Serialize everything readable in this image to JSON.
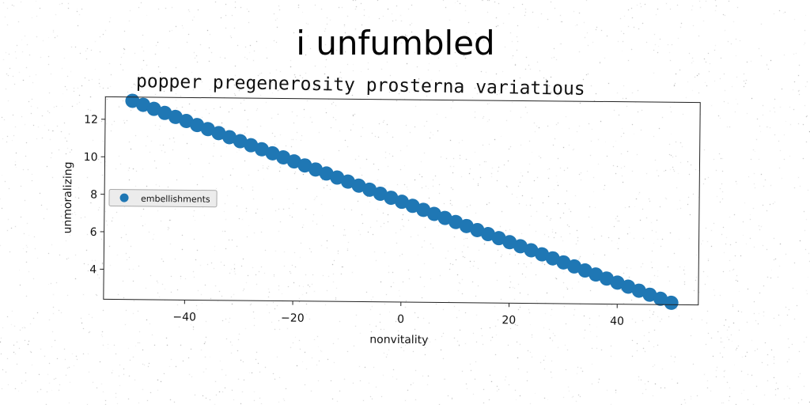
{
  "suptitle": "i unfumbled",
  "subtitle": "popper pregenerosity prosterna variatious",
  "chart_data": {
    "type": "scatter",
    "title": "popper pregenerosity prosterna variatious",
    "xlabel": "nonvitality",
    "ylabel": "unmoralizing",
    "xlim": [
      -55,
      55
    ],
    "ylim": [
      2.4,
      13.2
    ],
    "xticks": [
      -40,
      -20,
      0,
      20,
      40
    ],
    "yticks": [
      4,
      6,
      8,
      10,
      12
    ],
    "grid": false,
    "legend": {
      "position": "center-left",
      "entries": [
        "embellishments"
      ]
    },
    "series": [
      {
        "name": "embellishments",
        "color": "#1f77b4",
        "x": [
          -50,
          -48,
          -46,
          -44,
          -42,
          -40,
          -38,
          -36,
          -34,
          -32,
          -30,
          -28,
          -26,
          -24,
          -22,
          -20,
          -18,
          -16,
          -14,
          -12,
          -10,
          -8,
          -6,
          -4,
          -2,
          0,
          2,
          4,
          6,
          8,
          10,
          12,
          14,
          16,
          18,
          20,
          22,
          24,
          26,
          28,
          30,
          32,
          34,
          36,
          38,
          40,
          42,
          44,
          46,
          48,
          50
        ],
        "y": [
          13.0,
          12.79,
          12.58,
          12.37,
          12.16,
          11.95,
          11.74,
          11.53,
          11.32,
          11.11,
          10.9,
          10.69,
          10.48,
          10.27,
          10.06,
          9.85,
          9.64,
          9.43,
          9.22,
          9.01,
          8.8,
          8.59,
          8.38,
          8.17,
          7.96,
          7.75,
          7.54,
          7.33,
          7.12,
          6.91,
          6.7,
          6.49,
          6.28,
          6.07,
          5.86,
          5.65,
          5.44,
          5.23,
          5.02,
          4.81,
          4.6,
          4.39,
          4.18,
          3.97,
          3.76,
          3.55,
          3.34,
          3.13,
          2.92,
          2.71,
          2.5
        ]
      }
    ]
  }
}
